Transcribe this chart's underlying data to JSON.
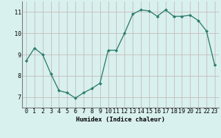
{
  "x": [
    0,
    1,
    2,
    3,
    4,
    5,
    6,
    7,
    8,
    9,
    10,
    11,
    12,
    13,
    14,
    15,
    16,
    17,
    18,
    19,
    20,
    21,
    22,
    23
  ],
  "y": [
    8.7,
    9.3,
    9.0,
    8.1,
    7.3,
    7.2,
    6.95,
    7.2,
    7.4,
    7.65,
    9.2,
    9.2,
    10.0,
    10.9,
    11.1,
    11.05,
    10.8,
    11.1,
    10.8,
    10.8,
    10.85,
    10.6,
    10.1,
    8.5
  ],
  "line_color": "#2e7d6e",
  "marker": "D",
  "marker_size": 2,
  "bg_color": "#d8f0ee",
  "grid_color": "#c0b0b0",
  "xlabel": "Humidex (Indice chaleur)",
  "ylabel": "",
  "xlim": [
    -0.5,
    23.5
  ],
  "ylim": [
    6.5,
    11.5
  ],
  "yticks": [
    7,
    8,
    9,
    10,
    11
  ],
  "xtick_labels": [
    "0",
    "1",
    "2",
    "3",
    "4",
    "5",
    "6",
    "7",
    "8",
    "9",
    "10",
    "11",
    "12",
    "13",
    "14",
    "15",
    "16",
    "17",
    "18",
    "19",
    "20",
    "21",
    "22",
    "23"
  ],
  "xlabel_fontsize": 6.5,
  "tick_fontsize": 6,
  "line_width": 1.0
}
